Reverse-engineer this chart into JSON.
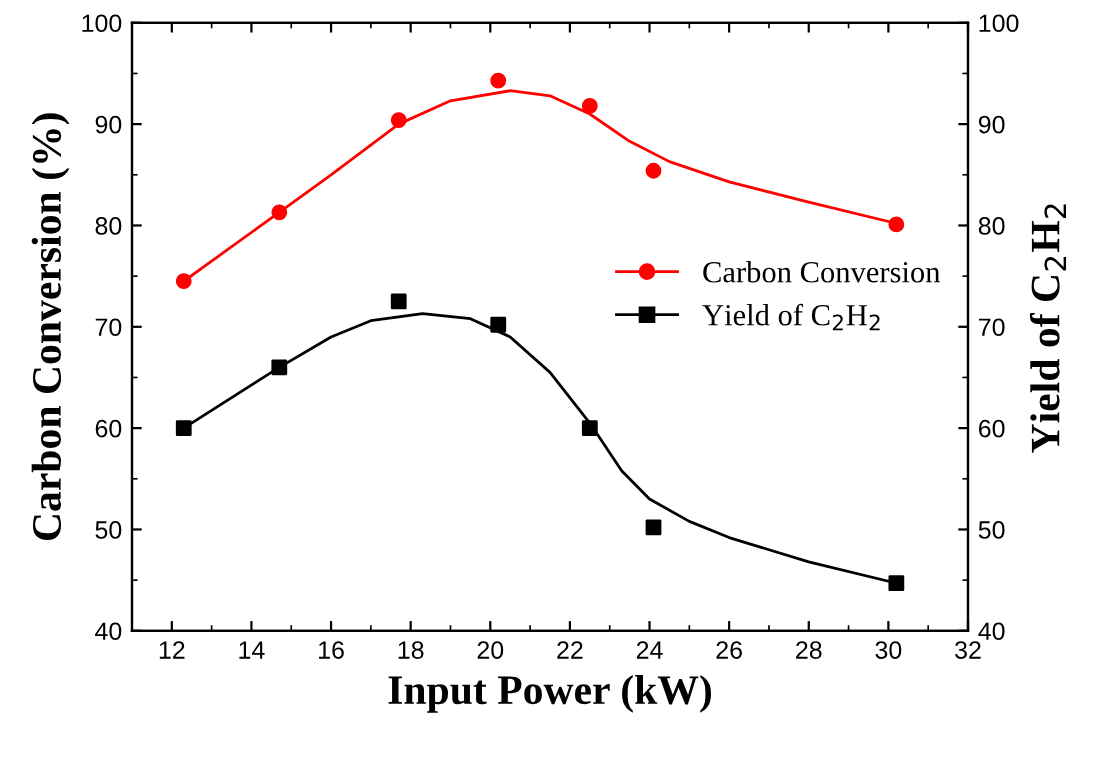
{
  "chart_data": {
    "type": "scatter",
    "xlabel": "Input Power (kW)",
    "ylabel": "Carbon Conversion (%)",
    "y2label": "Yield of C$_{2}$H$_{2}$",
    "xlim": [
      11,
      32
    ],
    "xticks": [
      12,
      14,
      16,
      18,
      20,
      22,
      24,
      26,
      28,
      30,
      32
    ],
    "ylim": [
      40,
      100
    ],
    "yticks": [
      40,
      50,
      60,
      70,
      80,
      90,
      100
    ],
    "y2lim": [
      40,
      100
    ],
    "y2ticks": [
      40,
      50,
      60,
      70,
      80,
      90,
      100
    ],
    "legend": "right",
    "grid": false,
    "series": [
      {
        "name": "Carbon Conversion",
        "color": "#ff0000",
        "marker": "circle",
        "x": [
          12.3,
          14.7,
          17.7,
          20.2,
          22.5,
          24.1,
          30.2
        ],
        "values": [
          74.5,
          81.3,
          90.4,
          94.3,
          91.8,
          85.4,
          80.1
        ]
      },
      {
        "name": "Yield of C$_{2}$H$_{2}$",
        "color": "#000000",
        "marker": "square",
        "x": [
          12.3,
          14.7,
          17.7,
          20.2,
          22.5,
          24.1,
          30.2
        ],
        "values": [
          60,
          66,
          72.5,
          70.2,
          60,
          50.2,
          44.7
        ]
      },
      {
        "type": "line",
        "color": "#ff0000",
        "marker": "none",
        "x": [
          12.3,
          14.7,
          16,
          17.7,
          19,
          20.5,
          21.5,
          22.5,
          23.5,
          24.5,
          26,
          28,
          30.2
        ],
        "values": [
          74.5,
          81.3,
          85,
          90,
          92.3,
          93.3,
          92.8,
          91,
          88.3,
          86.3,
          84.3,
          82.3,
          80.2
        ]
      },
      {
        "type": "line",
        "color": "#000000",
        "marker": "none",
        "x": [
          12.3,
          14.7,
          16,
          17,
          18.3,
          19.5,
          20.5,
          21.5,
          22.5,
          23.3,
          24,
          25,
          26,
          28,
          30.2
        ],
        "values": [
          60,
          66,
          69,
          70.6,
          71.3,
          70.8,
          69,
          65.5,
          60.5,
          55.8,
          53,
          50.8,
          49.2,
          46.8,
          44.7
        ]
      }
    ]
  }
}
